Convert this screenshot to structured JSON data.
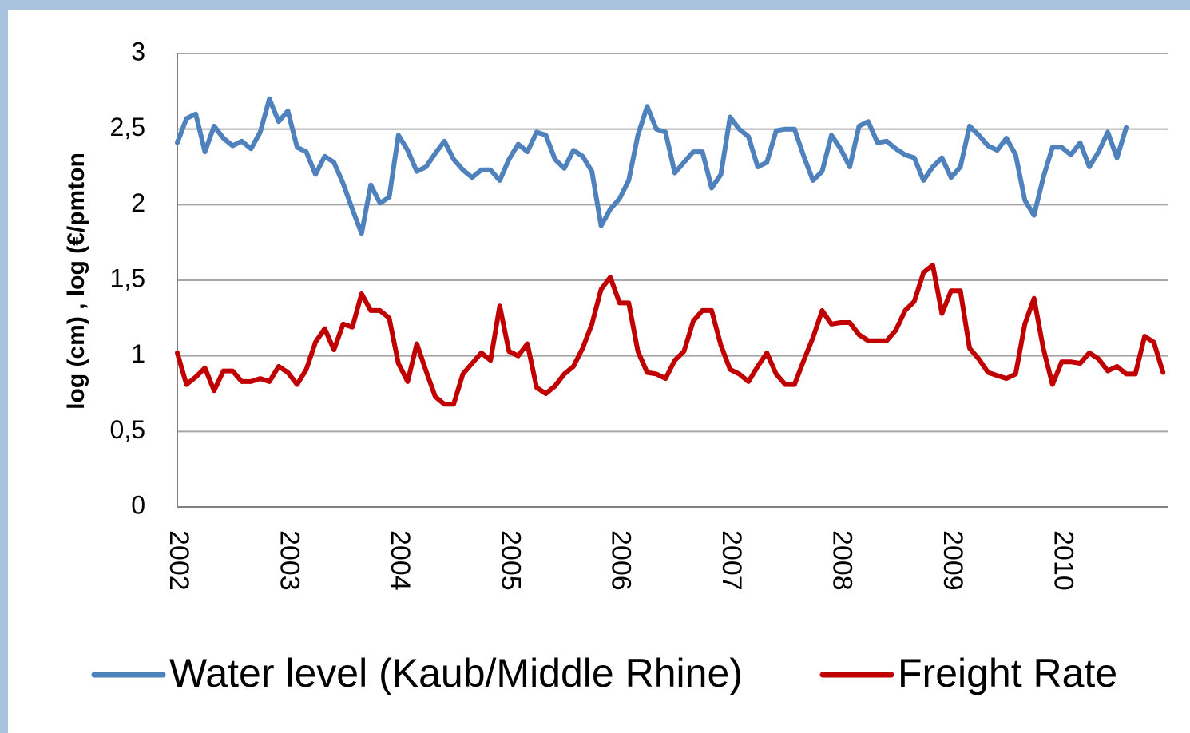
{
  "chart_data": {
    "type": "line",
    "y_label": "log (cm)  , log (€/pmton",
    "categories": [
      "2002",
      null,
      null,
      null,
      null,
      null,
      null,
      null,
      null,
      null,
      null,
      null,
      "2003",
      null,
      null,
      null,
      null,
      null,
      null,
      null,
      null,
      null,
      null,
      null,
      "2004",
      null,
      null,
      null,
      null,
      null,
      null,
      null,
      null,
      null,
      null,
      null,
      "2005",
      null,
      null,
      null,
      null,
      null,
      null,
      null,
      null,
      null,
      null,
      null,
      "2006",
      null,
      null,
      null,
      null,
      null,
      null,
      null,
      null,
      null,
      null,
      null,
      "2007",
      null,
      null,
      null,
      null,
      null,
      null,
      null,
      null,
      null,
      null,
      null,
      "2008",
      null,
      null,
      null,
      null,
      null,
      null,
      null,
      null,
      null,
      null,
      null,
      "2009",
      null,
      null,
      null,
      null,
      null,
      null,
      null,
      null,
      null,
      null,
      null,
      "2010",
      null,
      null,
      null,
      null,
      null,
      null,
      null,
      null,
      null,
      null,
      null
    ],
    "series": [
      {
        "name": "Water level (Kaub/Middle Rhine)",
        "color": "#4f81bd",
        "values": [
          2.41,
          2.57,
          2.6,
          2.35,
          2.52,
          2.44,
          2.39,
          2.42,
          2.37,
          2.48,
          2.7,
          2.55,
          2.62,
          2.38,
          2.35,
          2.2,
          2.32,
          2.28,
          2.14,
          1.97,
          1.81,
          2.13,
          2.01,
          2.05,
          2.46,
          2.36,
          2.22,
          2.25,
          2.34,
          2.42,
          2.3,
          2.23,
          2.18,
          2.23,
          2.23,
          2.16,
          2.3,
          2.4,
          2.35,
          2.48,
          2.46,
          2.3,
          2.24,
          2.36,
          2.32,
          2.22,
          1.86,
          1.97,
          2.04,
          2.16,
          2.46,
          2.65,
          2.5,
          2.48,
          2.21,
          2.28,
          2.35,
          2.35,
          2.11,
          2.2,
          2.58,
          2.5,
          2.45,
          2.25,
          2.28,
          2.49,
          2.5,
          2.5,
          2.32,
          2.16,
          2.22,
          2.46,
          2.37,
          2.25,
          2.52,
          2.55,
          2.41,
          2.42,
          2.37,
          2.33,
          2.31,
          2.16,
          2.25,
          2.31,
          2.18,
          2.25,
          2.52,
          2.46,
          2.39,
          2.36,
          2.44,
          2.33,
          2.03,
          1.93,
          2.18,
          2.38,
          2.38,
          2.33,
          2.41,
          2.25,
          2.35,
          2.48,
          2.31,
          2.51,
          null,
          null,
          null,
          null
        ]
      },
      {
        "name": "Freight Rate",
        "color": "#c00000",
        "values": [
          1.02,
          0.81,
          0.86,
          0.92,
          0.77,
          0.9,
          0.9,
          0.83,
          0.83,
          0.85,
          0.83,
          0.93,
          0.89,
          0.81,
          0.91,
          1.09,
          1.18,
          1.04,
          1.21,
          1.19,
          1.41,
          1.3,
          1.3,
          1.25,
          0.95,
          0.83,
          1.08,
          0.9,
          0.73,
          0.68,
          0.68,
          0.88,
          0.95,
          1.02,
          0.97,
          1.33,
          1.03,
          1.0,
          1.08,
          0.79,
          0.75,
          0.8,
          0.88,
          0.93,
          1.05,
          1.21,
          1.44,
          1.52,
          1.35,
          1.35,
          1.03,
          0.89,
          0.88,
          0.85,
          0.97,
          1.03,
          1.23,
          1.3,
          1.3,
          1.07,
          0.91,
          0.88,
          0.83,
          0.93,
          1.02,
          0.88,
          0.81,
          0.81,
          0.97,
          1.12,
          1.3,
          1.21,
          1.22,
          1.22,
          1.14,
          1.1,
          1.1,
          1.1,
          1.17,
          1.3,
          1.36,
          1.55,
          1.6,
          1.28,
          1.43,
          1.43,
          1.05,
          0.98,
          0.89,
          0.87,
          0.85,
          0.88,
          1.21,
          1.38,
          1.05,
          0.81,
          0.96,
          0.96,
          0.95,
          1.02,
          0.98,
          0.9,
          0.93,
          0.88,
          0.88,
          1.13,
          1.09,
          0.89
        ]
      }
    ],
    "ylim": [
      0,
      3
    ],
    "yticks": [
      0,
      {
        "value": 0.5,
        "label": "0,5"
      },
      1,
      {
        "value": 1.5,
        "label": "1,5"
      },
      2,
      {
        "value": 2.5,
        "label": "2,5"
      },
      3
    ],
    "grid": true,
    "legend": "bottom"
  }
}
